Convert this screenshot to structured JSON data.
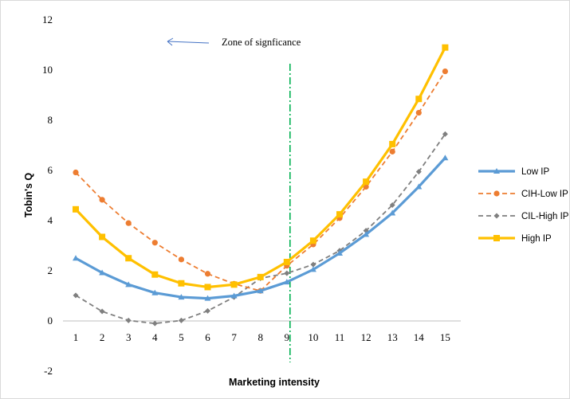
{
  "chart_data": {
    "type": "line",
    "title": "",
    "xlabel": "Marketing intensity",
    "ylabel": "Tobin's Q",
    "x": [
      1,
      2,
      3,
      4,
      5,
      6,
      7,
      8,
      9,
      10,
      11,
      12,
      13,
      14,
      15
    ],
    "ylim": [
      -2,
      12
    ],
    "yticks": [
      -2,
      0,
      2,
      4,
      6,
      8,
      10,
      12
    ],
    "series": [
      {
        "name": "Low IP",
        "color": "#5b9bd5",
        "dash": "solid",
        "marker": "triangle",
        "values": [
          2.5,
          1.92,
          1.45,
          1.12,
          0.95,
          0.9,
          1.0,
          1.2,
          1.55,
          2.05,
          2.7,
          3.45,
          4.3,
          5.35,
          6.5
        ]
      },
      {
        "name": "CIH-Low IP",
        "color": "#ed7d31",
        "dash": "dashed",
        "marker": "circle",
        "values": [
          5.92,
          4.83,
          3.9,
          3.12,
          2.45,
          1.88,
          1.48,
          1.2,
          2.2,
          3.05,
          4.1,
          5.35,
          6.75,
          8.3,
          9.95
        ]
      },
      {
        "name": "CIL-High IP",
        "color": "#7f7f7f",
        "dash": "dashed",
        "marker": "diamond",
        "values": [
          1.02,
          0.38,
          0.02,
          -0.1,
          0.02,
          0.4,
          0.95,
          1.7,
          1.9,
          2.25,
          2.8,
          3.6,
          4.62,
          5.95,
          7.45
        ]
      },
      {
        "name": "High IP",
        "color": "#ffc000",
        "dash": "solid",
        "marker": "square",
        "values": [
          4.45,
          3.35,
          2.5,
          1.85,
          1.5,
          1.35,
          1.45,
          1.75,
          2.35,
          3.2,
          4.25,
          5.55,
          7.05,
          8.85,
          10.9
        ]
      }
    ],
    "vline": {
      "x": 9,
      "color": "#00b050",
      "style": "dash-dot"
    },
    "annotation": "Zone of signficance",
    "legend_position": "right",
    "grid": false
  }
}
